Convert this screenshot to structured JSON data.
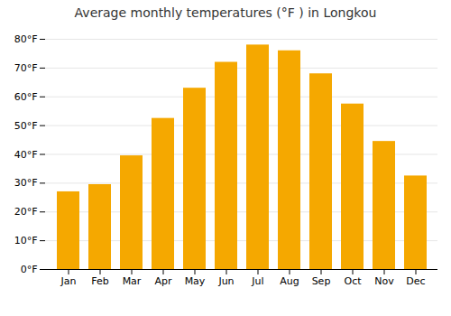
{
  "chart_data": {
    "type": "bar",
    "title": "Average monthly temperatures (°F ) in Longkou",
    "categories": [
      "Jan",
      "Feb",
      "Mar",
      "Apr",
      "May",
      "Jun",
      "Jul",
      "Aug",
      "Sep",
      "Oct",
      "Nov",
      "Dec"
    ],
    "values": [
      27,
      29.5,
      39.5,
      52.5,
      63,
      72,
      78,
      76,
      68,
      57.5,
      44.5,
      32.5
    ],
    "color": "#F5A800",
    "ylim": [
      0,
      80
    ],
    "yticks": [
      {
        "value": 0,
        "label": "0°F"
      },
      {
        "value": 10,
        "label": "10°F"
      },
      {
        "value": 20,
        "label": "20°F"
      },
      {
        "value": 30,
        "label": "30°F"
      },
      {
        "value": 40,
        "label": "40°F"
      },
      {
        "value": 50,
        "label": "50°F"
      },
      {
        "value": 60,
        "label": "60°F"
      },
      {
        "value": 70,
        "label": "70°F"
      },
      {
        "value": 80,
        "label": "80°F"
      }
    ],
    "grid": true
  }
}
